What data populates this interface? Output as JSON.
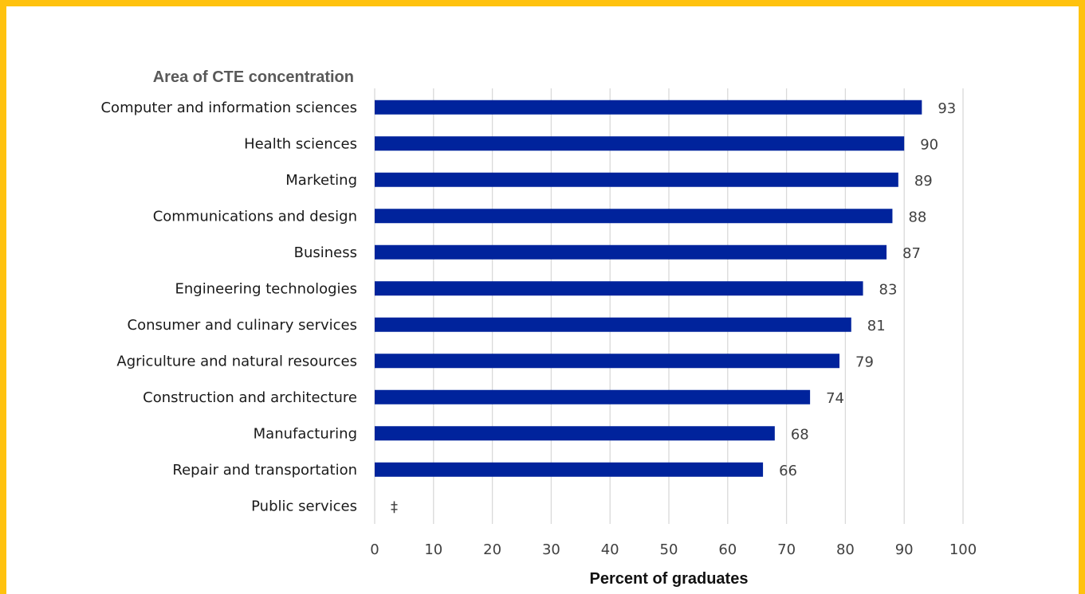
{
  "chart_data": {
    "type": "bar",
    "orientation": "horizontal",
    "category_axis_title": "Area of CTE concentration",
    "xlabel": "Percent of graduates",
    "categories": [
      "Computer and information sciences",
      "Health sciences",
      "Marketing",
      "Communications and design",
      "Business",
      "Engineering technologies",
      "Consumer and culinary services",
      "Agriculture and natural resources",
      "Construction and architecture",
      "Manufacturing",
      "Repair and transportation",
      "Public services"
    ],
    "values": [
      93,
      90,
      89,
      88,
      87,
      83,
      81,
      79,
      74,
      68,
      66,
      null
    ],
    "value_labels": [
      "93",
      "90",
      "89",
      "88",
      "87",
      "83",
      "81",
      "79",
      "74",
      "68",
      "66",
      "‡"
    ],
    "xlim": [
      0,
      100
    ],
    "xticks": [
      "0",
      "10",
      "20",
      "30",
      "40",
      "50",
      "60",
      "70",
      "80",
      "90",
      "100"
    ],
    "grid": true,
    "bar_color": "#00239c",
    "border_color": "#FFC20E"
  }
}
